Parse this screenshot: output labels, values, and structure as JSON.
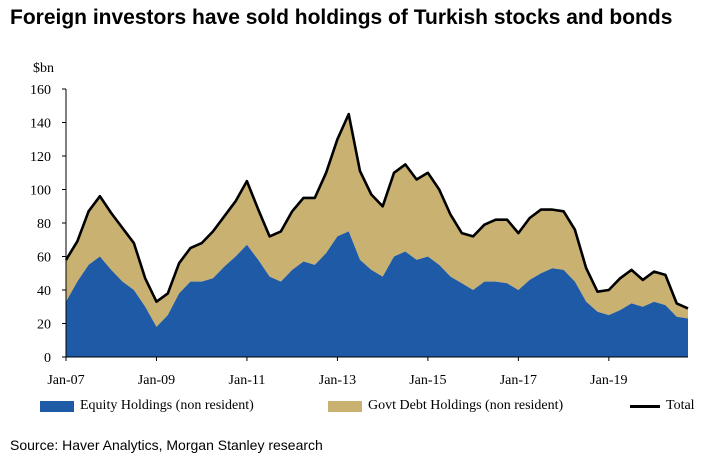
{
  "title": "Foreign investors have sold holdings of Turkish stocks and bonds",
  "source": "Source: Haver Analytics, Morgan Stanley research",
  "colors": {
    "equity": "#1f5aa6",
    "debt": "#c9b271",
    "total": "#000000",
    "axis": "#000000"
  },
  "chart_data": {
    "type": "area",
    "stacked": true,
    "unit_label": "$bn",
    "ylim": [
      0,
      160
    ],
    "y_ticks": [
      "0",
      "20",
      "40",
      "60",
      "80",
      "100",
      "120",
      "140",
      "160"
    ],
    "x_ticks": [
      "Jan-07",
      "Jan-09",
      "Jan-11",
      "Jan-13",
      "Jan-15",
      "Jan-17",
      "Jan-19"
    ],
    "x": [
      "Jan-07",
      "Apr-07",
      "Jul-07",
      "Oct-07",
      "Jan-08",
      "Apr-08",
      "Jul-08",
      "Oct-08",
      "Jan-09",
      "Apr-09",
      "Jul-09",
      "Oct-09",
      "Jan-10",
      "Apr-10",
      "Jul-10",
      "Oct-10",
      "Jan-11",
      "Apr-11",
      "Jul-11",
      "Oct-11",
      "Jan-12",
      "Apr-12",
      "Jul-12",
      "Oct-12",
      "Jan-13",
      "Apr-13",
      "Jul-13",
      "Oct-13",
      "Jan-14",
      "Apr-14",
      "Jul-14",
      "Oct-14",
      "Jan-15",
      "Apr-15",
      "Jul-15",
      "Oct-15",
      "Jan-16",
      "Apr-16",
      "Jul-16",
      "Oct-16",
      "Jan-17",
      "Apr-17",
      "Jul-17",
      "Oct-17",
      "Jan-18",
      "Apr-18",
      "Jul-18",
      "Oct-18",
      "Jan-19",
      "Apr-19",
      "Jul-19",
      "Oct-19",
      "Jan-20",
      "Apr-20",
      "Jul-20",
      "Sep-20"
    ],
    "series": [
      {
        "name": "Equity Holdings (non resident)",
        "values": [
          33,
          45,
          55,
          60,
          52,
          45,
          40,
          30,
          18,
          25,
          38,
          45,
          45,
          47,
          54,
          60,
          67,
          58,
          48,
          45,
          52,
          57,
          55,
          62,
          72,
          75,
          58,
          52,
          48,
          60,
          63,
          58,
          60,
          55,
          48,
          44,
          40,
          45,
          45,
          44,
          40,
          46,
          50,
          53,
          52,
          45,
          33,
          27,
          25,
          28,
          32,
          30,
          33,
          31,
          24,
          23
        ]
      },
      {
        "name": "Govt Debt Holdings (non resident)",
        "values": [
          25,
          24,
          32,
          36,
          34,
          32,
          28,
          17,
          15,
          13,
          18,
          20,
          23,
          28,
          30,
          33,
          38,
          30,
          24,
          30,
          35,
          38,
          40,
          48,
          58,
          70,
          53,
          45,
          42,
          50,
          52,
          48,
          50,
          45,
          37,
          30,
          32,
          34,
          37,
          38,
          34,
          37,
          38,
          35,
          35,
          31,
          20,
          12,
          15,
          19,
          20,
          16,
          18,
          18,
          8,
          6
        ]
      },
      {
        "name": "Total",
        "values": [
          58,
          69,
          87,
          96,
          86,
          77,
          68,
          47,
          33,
          38,
          56,
          65,
          68,
          75,
          84,
          93,
          105,
          88,
          72,
          75,
          87,
          95,
          95,
          110,
          130,
          145,
          111,
          97,
          90,
          110,
          115,
          106,
          110,
          100,
          85,
          74,
          72,
          79,
          82,
          82,
          74,
          83,
          88,
          88,
          87,
          76,
          53,
          39,
          40,
          47,
          52,
          46,
          51,
          49,
          32,
          29
        ]
      }
    ]
  },
  "legend": [
    {
      "label": "Equity Holdings (non resident)"
    },
    {
      "label": "Govt Debt Holdings (non resident)"
    },
    {
      "label": "Total"
    }
  ]
}
